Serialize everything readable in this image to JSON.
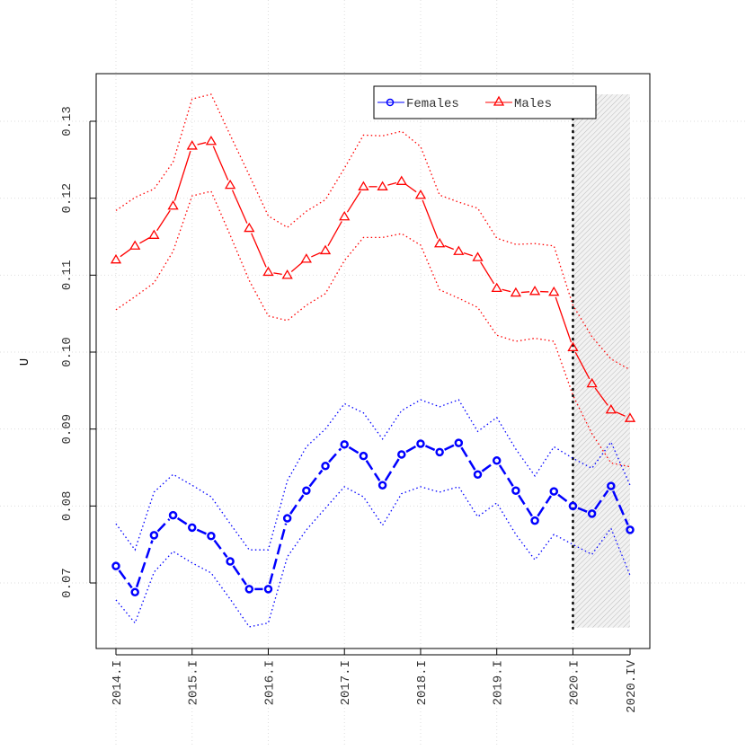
{
  "chart_data": {
    "type": "line",
    "title": "",
    "xlabel": "",
    "ylabel": "U",
    "ylim": [
      0.0635,
      0.138
    ],
    "yticks": [
      "0.07",
      "0.08",
      "0.09",
      "0.10",
      "0.11",
      "0.12",
      "0.13"
    ],
    "x": [
      "2014.I",
      "2014.II",
      "2014.III",
      "2014.IV",
      "2015.I",
      "2015.II",
      "2015.III",
      "2015.IV",
      "2016.I",
      "2016.II",
      "2016.III",
      "2016.IV",
      "2017.I",
      "2017.II",
      "2017.III",
      "2017.IV",
      "2018.I",
      "2018.II",
      "2018.III",
      "2018.IV",
      "2019.I",
      "2019.II",
      "2019.III",
      "2019.IV",
      "2020.I",
      "2020.II",
      "2020.III",
      "2020.IV"
    ],
    "xtick_labels": [
      "2014.I",
      "2015.I",
      "2016.I",
      "2017.I",
      "2018.I",
      "2019.I",
      "2020.I",
      "2020.IV"
    ],
    "grid": true,
    "legend_position": "top-right",
    "forecast_start": "2020.I",
    "forecast_shaded": true,
    "series": [
      {
        "name": "Females",
        "color": "#0000ff",
        "marker": "circle",
        "values": [
          0.0722,
          0.0688,
          0.0762,
          0.0788,
          0.0772,
          0.0761,
          0.0728,
          0.0692,
          0.0692,
          0.0784,
          0.082,
          0.0852,
          0.088,
          0.0865,
          0.0827,
          0.0867,
          0.0881,
          0.087,
          0.0882,
          0.0841,
          0.0859,
          0.082,
          0.0781,
          0.0819,
          0.08,
          0.079,
          0.0826,
          0.0769
        ],
        "upper": [
          0.0777,
          0.0743,
          0.0818,
          0.0841,
          0.0827,
          0.0812,
          0.0777,
          0.0743,
          0.0743,
          0.0833,
          0.0877,
          0.09,
          0.0933,
          0.0921,
          0.0887,
          0.0924,
          0.0938,
          0.0929,
          0.0938,
          0.0897,
          0.0915,
          0.0874,
          0.0839,
          0.0877,
          0.0862,
          0.0849,
          0.0883,
          0.0827
        ],
        "lower": [
          0.0678,
          0.0648,
          0.0714,
          0.0741,
          0.0726,
          0.0713,
          0.0679,
          0.0643,
          0.0648,
          0.0734,
          0.0769,
          0.0797,
          0.0825,
          0.0812,
          0.0775,
          0.0816,
          0.0825,
          0.0818,
          0.0825,
          0.0786,
          0.0804,
          0.0763,
          0.073,
          0.0763,
          0.075,
          0.0737,
          0.0771,
          0.071
        ]
      },
      {
        "name": "Males",
        "color": "#ff0000",
        "marker": "triangle",
        "values": [
          0.112,
          0.1138,
          0.1152,
          0.119,
          0.1268,
          0.1274,
          0.1217,
          0.1161,
          0.1104,
          0.11,
          0.1121,
          0.1132,
          0.1176,
          0.1215,
          0.1215,
          0.1222,
          0.1204,
          0.1141,
          0.1131,
          0.1123,
          0.1083,
          0.1077,
          0.1079,
          0.1078,
          0.1006,
          0.0959,
          0.0925,
          0.0914
        ],
        "upper": [
          0.1184,
          0.1201,
          0.1212,
          0.1247,
          0.1329,
          0.1335,
          0.1282,
          0.123,
          0.1177,
          0.1162,
          0.1183,
          0.1198,
          0.1239,
          0.1282,
          0.1281,
          0.1287,
          0.1267,
          0.1204,
          0.1195,
          0.1187,
          0.1148,
          0.114,
          0.1141,
          0.1138,
          0.1061,
          0.102,
          0.0991,
          0.0977
        ],
        "lower": [
          0.1055,
          0.1072,
          0.109,
          0.1131,
          0.1203,
          0.1209,
          0.1152,
          0.1093,
          0.1047,
          0.1041,
          0.1061,
          0.1076,
          0.1119,
          0.1149,
          0.1149,
          0.1154,
          0.1139,
          0.1081,
          0.107,
          0.1058,
          0.1022,
          0.1014,
          0.1018,
          0.1014,
          0.0944,
          0.0894,
          0.0856,
          0.0851
        ]
      }
    ]
  }
}
